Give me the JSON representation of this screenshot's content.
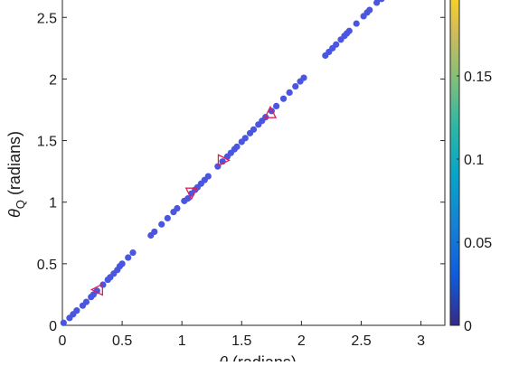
{
  "chart_data": {
    "type": "scatter",
    "xlabel_main": "θ",
    "xlabel_rest": " (radians)",
    "ylabel_main": "θ",
    "ylabel_sub": "Q",
    "ylabel_rest": " (radians)",
    "xlim": [
      0,
      3.2
    ],
    "ylim": [
      0,
      2.7
    ],
    "xticks": [
      0,
      0.5,
      1,
      1.5,
      2,
      2.5,
      3
    ],
    "xtick_labels": [
      "0",
      "0.5",
      "1",
      "1.5",
      "2",
      "2.5",
      "3"
    ],
    "yticks": [
      0,
      0.5,
      1,
      1.5,
      2,
      2.5
    ],
    "ytick_labels": [
      "0",
      "0.5",
      "1",
      "1.5",
      "2",
      "2.5"
    ],
    "colorbar": {
      "ticks": [
        0,
        0.05,
        0.1,
        0.15
      ],
      "tick_labels": [
        "0",
        "0.05",
        "0.1",
        "0.15"
      ],
      "lim": [
        0,
        0.2
      ],
      "colormap": "parula"
    },
    "point_color": "#4a55e0",
    "marker_color": "#e0205a",
    "points": [
      {
        "x": 0.01,
        "y": 0.02
      },
      {
        "x": 0.06,
        "y": 0.06
      },
      {
        "x": 0.09,
        "y": 0.09
      },
      {
        "x": 0.12,
        "y": 0.12
      },
      {
        "x": 0.17,
        "y": 0.16
      },
      {
        "x": 0.2,
        "y": 0.19
      },
      {
        "x": 0.24,
        "y": 0.23
      },
      {
        "x": 0.26,
        "y": 0.25
      },
      {
        "x": 0.29,
        "y": 0.28
      },
      {
        "x": 0.34,
        "y": 0.33
      },
      {
        "x": 0.38,
        "y": 0.37
      },
      {
        "x": 0.4,
        "y": 0.39
      },
      {
        "x": 0.43,
        "y": 0.42
      },
      {
        "x": 0.46,
        "y": 0.45
      },
      {
        "x": 0.48,
        "y": 0.48
      },
      {
        "x": 0.5,
        "y": 0.5
      },
      {
        "x": 0.55,
        "y": 0.55
      },
      {
        "x": 0.59,
        "y": 0.59
      },
      {
        "x": 0.74,
        "y": 0.73
      },
      {
        "x": 0.77,
        "y": 0.76
      },
      {
        "x": 0.83,
        "y": 0.82
      },
      {
        "x": 0.88,
        "y": 0.87
      },
      {
        "x": 0.93,
        "y": 0.92
      },
      {
        "x": 0.96,
        "y": 0.95
      },
      {
        "x": 1.02,
        "y": 1.01
      },
      {
        "x": 1.05,
        "y": 1.03
      },
      {
        "x": 1.08,
        "y": 1.07
      },
      {
        "x": 1.11,
        "y": 1.1
      },
      {
        "x": 1.13,
        "y": 1.12
      },
      {
        "x": 1.16,
        "y": 1.15
      },
      {
        "x": 1.19,
        "y": 1.18
      },
      {
        "x": 1.22,
        "y": 1.21
      },
      {
        "x": 1.3,
        "y": 1.29
      },
      {
        "x": 1.34,
        "y": 1.33
      },
      {
        "x": 1.38,
        "y": 1.37
      },
      {
        "x": 1.41,
        "y": 1.4
      },
      {
        "x": 1.44,
        "y": 1.43
      },
      {
        "x": 1.46,
        "y": 1.45
      },
      {
        "x": 1.5,
        "y": 1.49
      },
      {
        "x": 1.53,
        "y": 1.52
      },
      {
        "x": 1.57,
        "y": 1.56
      },
      {
        "x": 1.6,
        "y": 1.59
      },
      {
        "x": 1.64,
        "y": 1.63
      },
      {
        "x": 1.67,
        "y": 1.66
      },
      {
        "x": 1.7,
        "y": 1.69
      },
      {
        "x": 1.75,
        "y": 1.74
      },
      {
        "x": 1.79,
        "y": 1.78
      },
      {
        "x": 1.85,
        "y": 1.84
      },
      {
        "x": 1.9,
        "y": 1.89
      },
      {
        "x": 1.95,
        "y": 1.94
      },
      {
        "x": 1.99,
        "y": 1.98
      },
      {
        "x": 2.02,
        "y": 2.01
      },
      {
        "x": 2.2,
        "y": 2.19
      },
      {
        "x": 2.23,
        "y": 2.22
      },
      {
        "x": 2.26,
        "y": 2.25
      },
      {
        "x": 2.29,
        "y": 2.28
      },
      {
        "x": 2.33,
        "y": 2.32
      },
      {
        "x": 2.36,
        "y": 2.35
      },
      {
        "x": 2.38,
        "y": 2.37
      },
      {
        "x": 2.4,
        "y": 2.39
      },
      {
        "x": 2.46,
        "y": 2.45
      },
      {
        "x": 2.52,
        "y": 2.51
      },
      {
        "x": 2.55,
        "y": 2.54
      },
      {
        "x": 2.57,
        "y": 2.56
      },
      {
        "x": 2.63,
        "y": 2.62
      },
      {
        "x": 2.67,
        "y": 2.65
      },
      {
        "x": 2.71,
        "y": 2.69
      }
    ],
    "triangle_markers": [
      {
        "x": 0.29,
        "y": 0.29,
        "dir": "left"
      },
      {
        "x": 1.08,
        "y": 1.07,
        "dir": "down"
      },
      {
        "x": 1.35,
        "y": 1.34,
        "dir": "right"
      },
      {
        "x": 1.74,
        "y": 1.73,
        "dir": "up"
      }
    ]
  }
}
